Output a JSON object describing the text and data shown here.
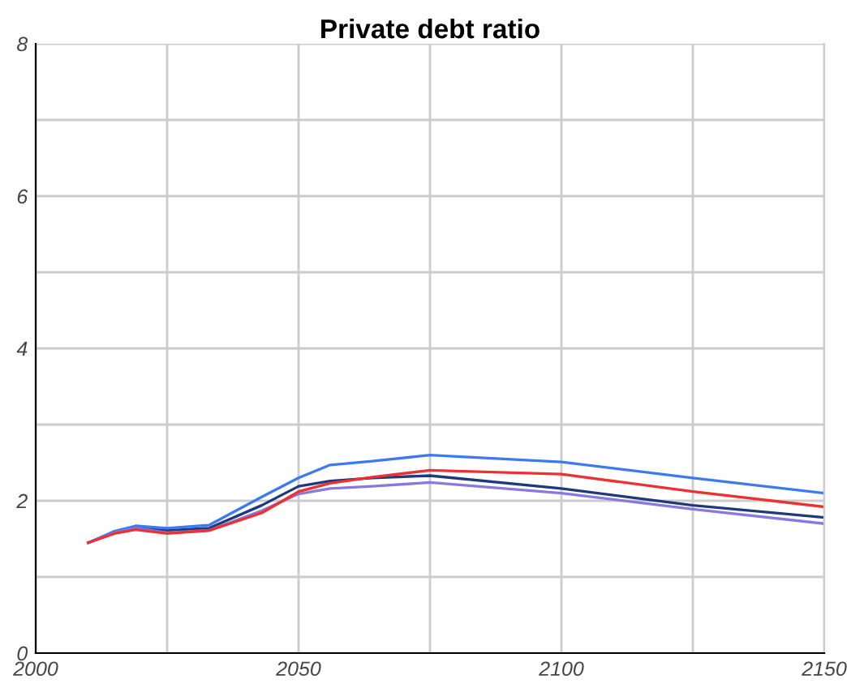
{
  "chart_data": {
    "type": "line",
    "title": "Private debt ratio",
    "x": [
      2010,
      2015,
      2019,
      2025,
      2033,
      2043,
      2050,
      2056,
      2064,
      2075,
      2100,
      2125,
      2150
    ],
    "series": [
      {
        "color": "#1f3a7a",
        "values": [
          1.45,
          1.58,
          1.64,
          1.61,
          1.64,
          1.94,
          2.19,
          2.26,
          2.3,
          2.33,
          2.16,
          1.94,
          1.78
        ]
      },
      {
        "color": "#3b7af0",
        "values": [
          1.45,
          1.6,
          1.67,
          1.64,
          1.68,
          2.05,
          2.3,
          2.47,
          2.52,
          2.6,
          2.51,
          2.3,
          2.1
        ]
      },
      {
        "color": "#8878e0",
        "values": [
          1.45,
          1.58,
          1.64,
          1.58,
          1.61,
          1.87,
          2.09,
          2.16,
          2.19,
          2.24,
          2.1,
          1.89,
          1.7
        ]
      },
      {
        "color": "#ee3030",
        "values": [
          1.45,
          1.57,
          1.62,
          1.57,
          1.61,
          1.84,
          2.12,
          2.23,
          2.31,
          2.4,
          2.35,
          2.12,
          1.92
        ]
      }
    ],
    "xlim": [
      2000,
      2150
    ],
    "xticks": [
      2000,
      {
        "value": 2025,
        "label": null
      },
      2050,
      {
        "value": 2075,
        "label": null
      },
      2100,
      {
        "value": 2125,
        "label": null
      },
      2150
    ],
    "ylim": [
      0,
      8
    ],
    "yticks": [
      0,
      {
        "value": 1,
        "label": null
      },
      2,
      {
        "value": 3,
        "label": null
      },
      4,
      {
        "value": 5,
        "label": null
      },
      6,
      {
        "value": 7,
        "label": null
      },
      8
    ],
    "grid": true
  }
}
